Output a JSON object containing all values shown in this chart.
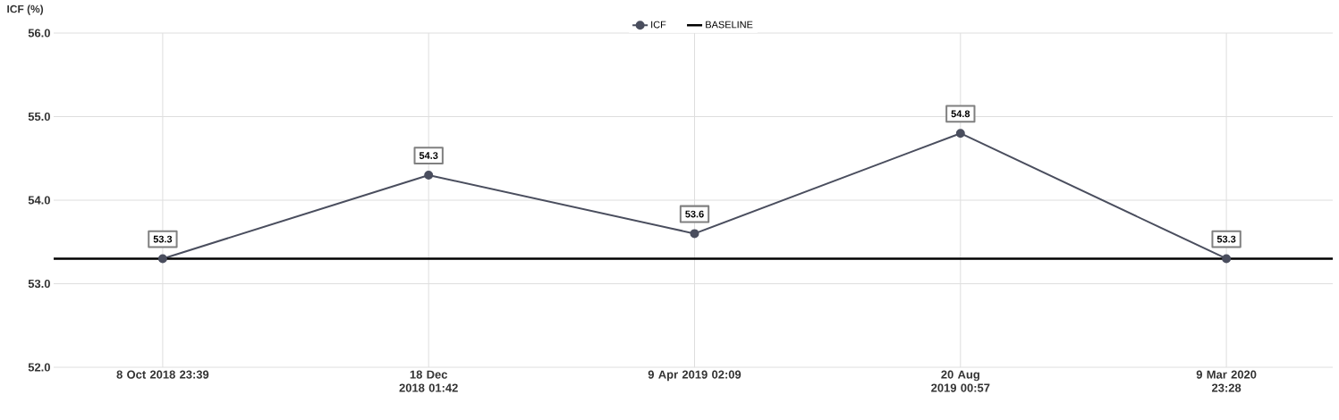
{
  "chart_data": {
    "type": "line",
    "ylabel": "ICF (%)",
    "categories": [
      "8 Oct 2018 23:39",
      "18 Dec 2018 01:42",
      "9 Apr 2019 02:09",
      "20 Aug 2019 00:57",
      "9 Mar 2020 23:28"
    ],
    "series": [
      {
        "name": "ICF",
        "color": "#4a4e5e",
        "values": [
          53.3,
          54.3,
          53.6,
          54.8,
          53.3
        ]
      }
    ],
    "ylim": [
      52,
      56
    ],
    "yticks": [
      {
        "value": 52,
        "label": "52.0"
      },
      {
        "value": 53,
        "label": "53.0"
      },
      {
        "value": 54,
        "label": "54.0"
      },
      {
        "value": 55,
        "label": "55.0"
      },
      {
        "value": 56,
        "label": "56.0"
      }
    ],
    "ref_lines": [
      {
        "axis": "y",
        "value": 53.3,
        "label": "BASELINE",
        "color": "#000000"
      }
    ],
    "data_labels": true,
    "grid": true,
    "legend": "top",
    "marker": "circle",
    "line_style": "solid"
  }
}
